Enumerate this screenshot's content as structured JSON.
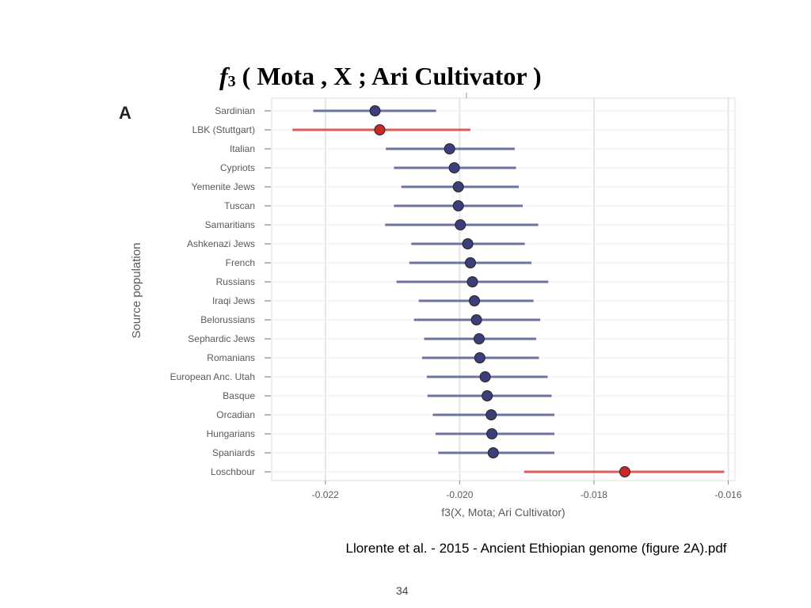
{
  "slide": {
    "title_f": "f",
    "title_sub": "3",
    "title_rest": " ( Mota , X ; Ari Cultivator )",
    "citation": "Llorente et al. - 2015 - Ancient Ethiopian genome (figure 2A).pdf",
    "page_number": "34"
  },
  "chart_data": {
    "type": "scatter",
    "panel_label": "A",
    "ylabel": "Source population",
    "xlabel": "f3(X, Mota; Ari Cultivator)",
    "xlim": [
      -0.0228,
      -0.0159
    ],
    "xticks": [
      -0.022,
      -0.02,
      -0.018,
      -0.016
    ],
    "xtick_labels": [
      "-0.022",
      "-0.020",
      "-0.018",
      "-0.016"
    ],
    "grid": true,
    "categories": [
      "Sardinian",
      "LBK (Stuttgart)",
      "Italian",
      "Cypriots",
      "Yemenite Jews",
      "Tuscan",
      "Samaritians",
      "Ashkenazi Jews",
      "French",
      "Russians",
      "Iraqi Jews",
      "Belorussians",
      "Sephardic Jews",
      "Romanians",
      "European Anc. Utah",
      "Basque",
      "Orcadian",
      "Hungarians",
      "Spaniards",
      "Loschbour"
    ],
    "values": [
      -0.02126,
      -0.02119,
      -0.02015,
      -0.02008,
      -0.02002,
      -0.02002,
      -0.01999,
      -0.01988,
      -0.01984,
      -0.01981,
      -0.01978,
      -0.01975,
      -0.01971,
      -0.0197,
      -0.01962,
      -0.01959,
      -0.01953,
      -0.01952,
      -0.0195,
      -0.01754
    ],
    "ci_low": [
      -0.02218,
      -0.02249,
      -0.0211,
      -0.02098,
      -0.02087,
      -0.02098,
      -0.02111,
      -0.02072,
      -0.02075,
      -0.02094,
      -0.02061,
      -0.02068,
      -0.02053,
      -0.02056,
      -0.02049,
      -0.02048,
      -0.0204,
      -0.02036,
      -0.02032,
      -0.01904
    ],
    "ci_high": [
      -0.02035,
      -0.01984,
      -0.01918,
      -0.01916,
      -0.01912,
      -0.01906,
      -0.01883,
      -0.01903,
      -0.01893,
      -0.01868,
      -0.0189,
      -0.0188,
      -0.01886,
      -0.01882,
      -0.01869,
      -0.01863,
      -0.01859,
      -0.01859,
      -0.01859,
      -0.01606
    ],
    "highlight": [
      "LBK (Stuttgart)",
      "Loschbour"
    ],
    "colors": {
      "point": "#3b3f7a",
      "bar": "#6f72a8",
      "highlight_point": "#cc2727",
      "highlight_bar": "#dd5a5a",
      "grid": "#e6e6e6",
      "axis_text": "#5a5a5a"
    }
  }
}
